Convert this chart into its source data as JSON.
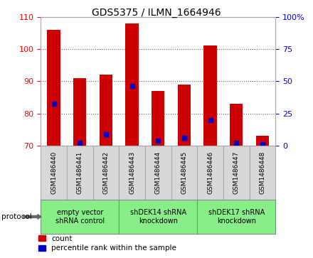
{
  "title": "GDS5375 / ILMN_1664946",
  "samples": [
    "GSM1486440",
    "GSM1486441",
    "GSM1486442",
    "GSM1486443",
    "GSM1486444",
    "GSM1486445",
    "GSM1486446",
    "GSM1486447",
    "GSM1486448"
  ],
  "counts": [
    106.0,
    91.0,
    92.0,
    108.0,
    87.0,
    89.0,
    101.0,
    83.0,
    73.0
  ],
  "percentile_values": [
    83.0,
    71.0,
    73.5,
    88.5,
    71.5,
    72.5,
    78.0,
    71.0,
    70.5
  ],
  "ylim_left": [
    70,
    110
  ],
  "ylim_right": [
    0,
    100
  ],
  "yticks_left": [
    70,
    80,
    90,
    100,
    110
  ],
  "yticks_right": [
    0,
    25,
    50,
    75,
    100
  ],
  "bar_color": "#cc0000",
  "dot_color": "#0000cc",
  "bar_bottom": 70,
  "groups": [
    {
      "label": "empty vector\nshRNA control",
      "start": 0,
      "end": 3
    },
    {
      "label": "shDEK14 shRNA\nknockdown",
      "start": 3,
      "end": 6
    },
    {
      "label": "shDEK17 shRNA\nknockdown",
      "start": 6,
      "end": 9
    }
  ],
  "protocol_label": "protocol",
  "legend_count_label": "count",
  "legend_percentile_label": "percentile rank within the sample",
  "bg_color": "#ffffff",
  "plot_bg_color": "#ffffff",
  "grid_color": "#666666",
  "sample_box_color": "#d8d8d8",
  "group_box_color": "#88ee88"
}
